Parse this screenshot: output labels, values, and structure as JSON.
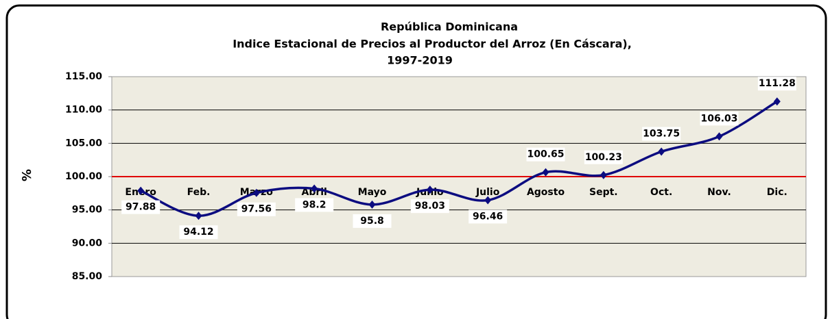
{
  "chart_data": {
    "type": "line",
    "title": [
      "República Dominicana",
      "Indice Estacional de Precios al Productor del Arroz  (En Cáscara),",
      "1997-2019"
    ],
    "y_label": "%",
    "categories": [
      "Enero",
      "Feb.",
      "Marzo",
      "Abril",
      "Mayo",
      "Junio",
      "Julio",
      "Agosto",
      "Sept.",
      "Oct.",
      "Nov.",
      "Dic."
    ],
    "values": [
      97.88,
      94.12,
      97.56,
      98.2,
      95.8,
      98.03,
      96.46,
      100.65,
      100.23,
      103.75,
      106.03,
      111.28
    ],
    "color": "#0c0c80",
    "ylim": [
      85,
      115
    ],
    "yticks": [
      {
        "value": 85,
        "label": "85.00"
      },
      {
        "value": 90,
        "label": "90.00"
      },
      {
        "value": 95,
        "label": "95.00"
      },
      {
        "value": 100,
        "label": "100.00"
      },
      {
        "value": 105,
        "label": "105.00"
      },
      {
        "value": 110,
        "label": "110.00"
      },
      {
        "value": 115,
        "label": "115.00"
      }
    ],
    "grid": true,
    "reference_line": {
      "value": 100,
      "color": "#e00000"
    }
  }
}
